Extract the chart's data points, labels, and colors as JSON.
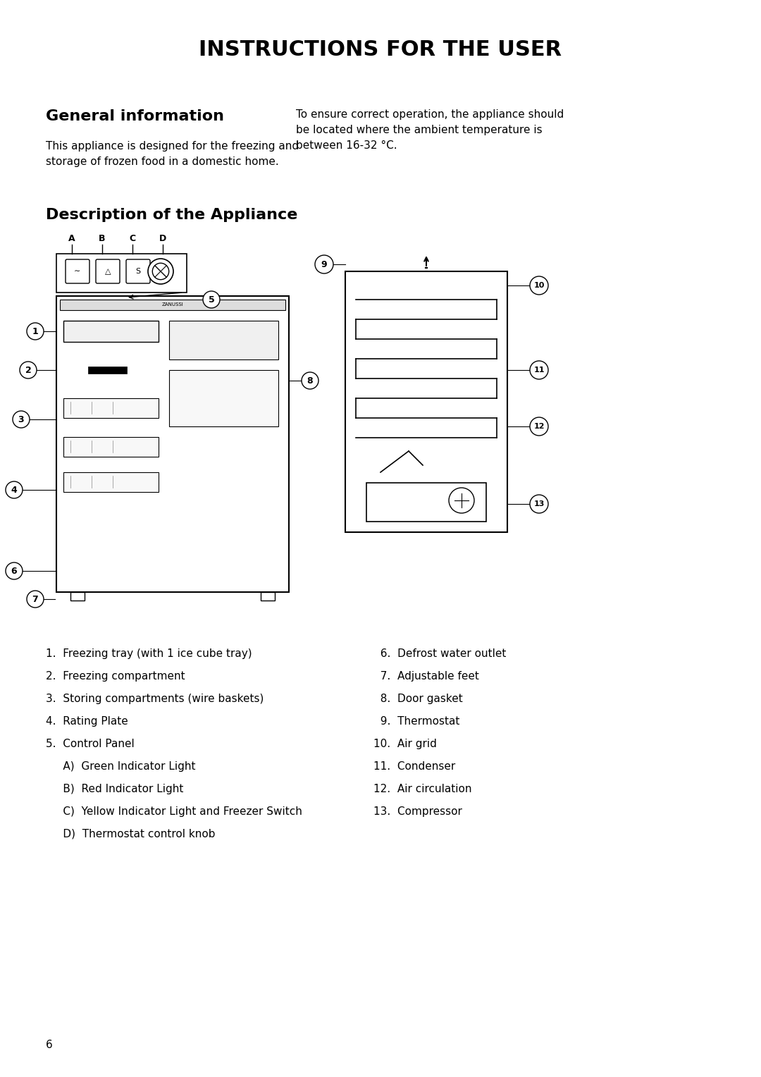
{
  "title": "INSTRUCTIONS FOR THE USER",
  "section1_heading": "General information",
  "section1_left": "This appliance is designed for the freezing and\nstorage of frozen food in a domestic home.",
  "section1_right": "To ensure correct operation, the appliance should\nbe located where the ambient temperature is\nbetween 16-32 °C.",
  "section2_heading": "Description of the Appliance",
  "list_left": [
    "1.  Freezing tray (with 1 ice cube tray)",
    "2.  Freezing compartment",
    "3.  Storing compartments (wire baskets)",
    "4.  Rating Plate",
    "5.  Control Panel",
    "     A)  Green Indicator Light",
    "     B)  Red Indicator Light",
    "     C)  Yellow Indicator Light and Freezer Switch",
    "     D)  Thermostat control knob"
  ],
  "list_right": [
    "  6.  Defrost water outlet",
    "  7.  Adjustable feet",
    "  8.  Door gasket",
    "  9.  Thermostat",
    "10.  Air grid",
    "11.  Condenser",
    "12.  Air circulation",
    "13.  Compressor"
  ],
  "page_number": "6",
  "bg_color": "#ffffff",
  "text_color": "#000000"
}
